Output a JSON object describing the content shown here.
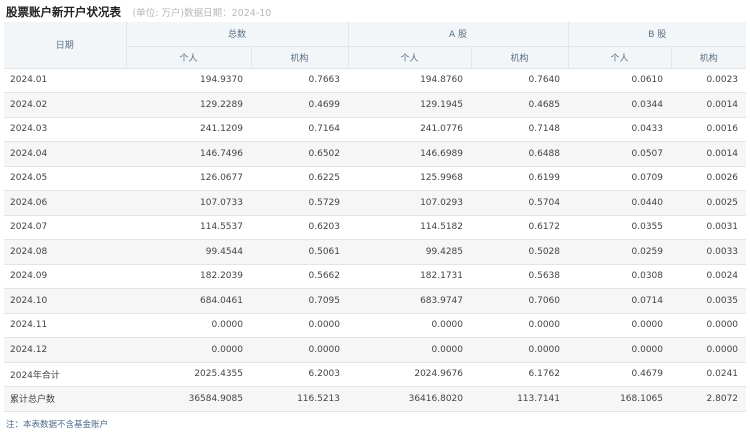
{
  "header": {
    "title": "股票账户新开户状况表",
    "subtitle": "(单位: 万户)数据日期：2024-10"
  },
  "table": {
    "col_date": "日期",
    "groups": [
      "总数",
      "A 股",
      "B 股"
    ],
    "sub": [
      "个人",
      "机构",
      "个人",
      "机构",
      "个人",
      "机构"
    ],
    "rows": [
      {
        "date": "2024.01",
        "v": [
          "194.9370",
          "0.7663",
          "194.8760",
          "0.7640",
          "0.0610",
          "0.0023"
        ]
      },
      {
        "date": "2024.02",
        "v": [
          "129.2289",
          "0.4699",
          "129.1945",
          "0.4685",
          "0.0344",
          "0.0014"
        ]
      },
      {
        "date": "2024.03",
        "v": [
          "241.1209",
          "0.7164",
          "241.0776",
          "0.7148",
          "0.0433",
          "0.0016"
        ]
      },
      {
        "date": "2024.04",
        "v": [
          "146.7496",
          "0.6502",
          "146.6989",
          "0.6488",
          "0.0507",
          "0.0014"
        ]
      },
      {
        "date": "2024.05",
        "v": [
          "126.0677",
          "0.6225",
          "125.9968",
          "0.6199",
          "0.0709",
          "0.0026"
        ]
      },
      {
        "date": "2024.06",
        "v": [
          "107.0733",
          "0.5729",
          "107.0293",
          "0.5704",
          "0.0440",
          "0.0025"
        ]
      },
      {
        "date": "2024.07",
        "v": [
          "114.5537",
          "0.6203",
          "114.5182",
          "0.6172",
          "0.0355",
          "0.0031"
        ]
      },
      {
        "date": "2024.08",
        "v": [
          "99.4544",
          "0.5061",
          "99.4285",
          "0.5028",
          "0.0259",
          "0.0033"
        ]
      },
      {
        "date": "2024.09",
        "v": [
          "182.2039",
          "0.5662",
          "182.1731",
          "0.5638",
          "0.0308",
          "0.0024"
        ]
      },
      {
        "date": "2024.10",
        "v": [
          "684.0461",
          "0.7095",
          "683.9747",
          "0.7060",
          "0.0714",
          "0.0035"
        ]
      },
      {
        "date": "2024.11",
        "v": [
          "0.0000",
          "0.0000",
          "0.0000",
          "0.0000",
          "0.0000",
          "0.0000"
        ]
      },
      {
        "date": "2024.12",
        "v": [
          "0.0000",
          "0.0000",
          "0.0000",
          "0.0000",
          "0.0000",
          "0.0000"
        ]
      },
      {
        "date": "2024年合计",
        "v": [
          "2025.4355",
          "6.2003",
          "2024.9676",
          "6.1762",
          "0.4679",
          "0.0241"
        ]
      },
      {
        "date": "累计总户数",
        "v": [
          "36584.9085",
          "116.5213",
          "36416.8020",
          "113.7141",
          "168.1065",
          "2.8072"
        ]
      }
    ]
  },
  "note": "注：本表数据不含基金账户"
}
